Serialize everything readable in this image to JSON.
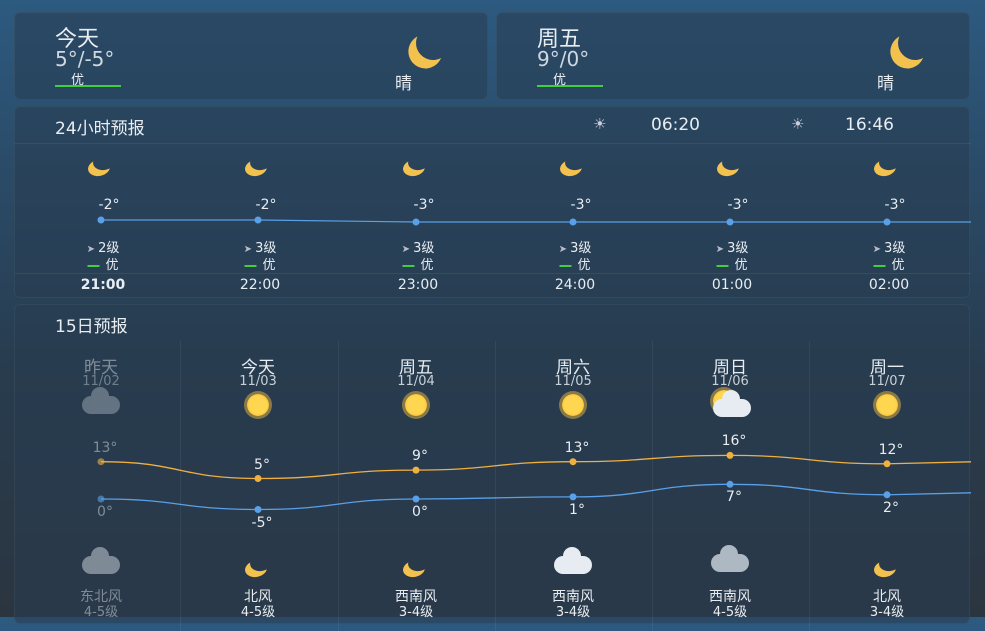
{
  "today": {
    "label": "今天",
    "temps": "5°/-5°",
    "aqi": "优",
    "condition": "晴",
    "icon": "moon-icon"
  },
  "friday": {
    "label": "周五",
    "temps": "9°/0°",
    "aqi": "优",
    "condition": "晴",
    "icon": "moon-icon"
  },
  "hourly": {
    "title": "24小时预报",
    "sunrise": "06:20",
    "sunset": "16:46",
    "hours": [
      {
        "time": "21:00",
        "temp": -2,
        "temp_label": "-2°",
        "wind": "2级",
        "aqi": "优",
        "icon": "moon-icon"
      },
      {
        "time": "22:00",
        "temp": -2,
        "temp_label": "-2°",
        "wind": "3级",
        "aqi": "优",
        "icon": "moon-icon"
      },
      {
        "time": "23:00",
        "temp": -3,
        "temp_label": "-3°",
        "wind": "3级",
        "aqi": "优",
        "icon": "moon-icon"
      },
      {
        "time": "24:00",
        "temp": -3,
        "temp_label": "-3°",
        "wind": "3级",
        "aqi": "优",
        "icon": "moon-icon"
      },
      {
        "time": "01:00",
        "temp": -3,
        "temp_label": "-3°",
        "wind": "3级",
        "aqi": "优",
        "icon": "moon-icon"
      },
      {
        "time": "02:00",
        "temp": -3,
        "temp_label": "-3°",
        "wind": "3级",
        "aqi": "优",
        "icon": "moon-icon"
      }
    ]
  },
  "daily": {
    "title": "15日预报",
    "days": [
      {
        "day": "昨天",
        "date": "11/02",
        "high": 13,
        "high_label": "13°",
        "low": 0,
        "low_label": "0°",
        "day_icon": "cloud-rain-icon",
        "night_icon": "cloud-moon-icon",
        "wind_dir": "东北风",
        "wind_level": "4-5级",
        "past": true
      },
      {
        "day": "今天",
        "date": "11/03",
        "high": 5,
        "high_label": "5°",
        "low": -5,
        "low_label": "-5°",
        "day_icon": "sun-icon",
        "night_icon": "moon-icon",
        "wind_dir": "北风",
        "wind_level": "4-5级"
      },
      {
        "day": "周五",
        "date": "11/04",
        "high": 9,
        "high_label": "9°",
        "low": 0,
        "low_label": "0°",
        "day_icon": "sun-icon",
        "night_icon": "moon-icon",
        "wind_dir": "西南风",
        "wind_level": "3-4级"
      },
      {
        "day": "周六",
        "date": "11/05",
        "high": 13,
        "high_label": "13°",
        "low": 1,
        "low_label": "1°",
        "day_icon": "sun-icon",
        "night_icon": "cloud-moon-icon",
        "wind_dir": "西南风",
        "wind_level": "3-4级"
      },
      {
        "day": "周日",
        "date": "11/06",
        "high": 16,
        "high_label": "16°",
        "low": 7,
        "low_label": "7°",
        "day_icon": "partly-cloudy-icon",
        "night_icon": "cloud-rain-icon",
        "wind_dir": "西南风",
        "wind_level": "4-5级"
      },
      {
        "day": "周一",
        "date": "11/07",
        "high": 12,
        "high_label": "12°",
        "low": 2,
        "low_label": "2°",
        "day_icon": "sun-icon",
        "night_icon": "moon-icon",
        "wind_dir": "北风",
        "wind_level": "3-4级"
      }
    ]
  },
  "colors": {
    "high_line": "#f0b040",
    "low_line": "#5aa0e8",
    "aqi_good": "#3fcf3f"
  }
}
